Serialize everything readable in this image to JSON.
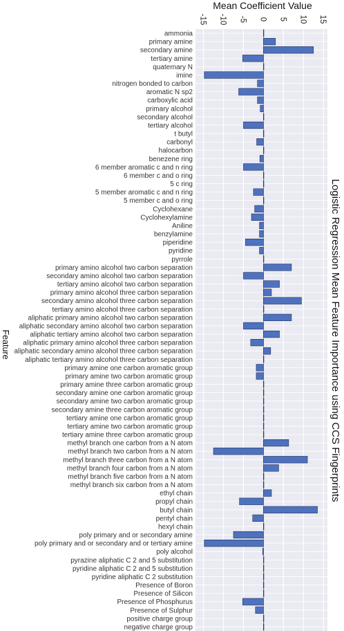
{
  "chart_data": {
    "type": "bar",
    "orientation": "horizontal",
    "title": "Logistic Regression Mean Feature Importance using CCS Fingerprints",
    "xlabel": "Mean Coefficient Value",
    "ylabel": "Feature",
    "xlim": [
      -17,
      16
    ],
    "xticks": [
      -15,
      -10,
      -5,
      0,
      5,
      10,
      15
    ],
    "xtick_labels": [
      "-15",
      "-10",
      "-5",
      "0",
      "5",
      "10",
      "15"
    ],
    "grid": true,
    "colors": {
      "bar": "#4f72be",
      "bar_edge": "#1f2f55",
      "plot_bg": "#eaeaf2",
      "grid": "#ffffff"
    },
    "categories": [
      "ammonia",
      "primary amine",
      "secondary amine",
      "tertiary amine",
      "quaternary N",
      "imine",
      "nitrogen bonded to carbon",
      "aromatic N sp2",
      "carboxylic acid",
      "primary alcohol",
      "secondary alcohol",
      "tertiary alcohol",
      "t butyl",
      "carbonyl",
      "halocarbon",
      "benezene ring",
      "6 member aromatic c and n ring",
      "6 member c and o ring",
      "5 c ring",
      "5 member aromatic c and n ring",
      "5 member c and o ring",
      "Cyclohexane",
      "Cyclohexylamine",
      "Aniline",
      "benzylamine",
      "piperidine",
      "pyridine",
      "pyrrole",
      "primary amino alcohol two carbon separation",
      "secondary amino alcohol two carbon separation",
      "tertiary amino alcohol two carbon separation",
      "primary amino alcohol three carbon separation",
      "secondary amino alcohol three carbon separation",
      "tertiary amino alcohol three carbon separation",
      "aliphatic primary amino alcohol two carbon separation",
      "aliphatic secondary amino alcohol two carbon separation",
      "aliphatic tertiary amino alcohol two carbon separation",
      "aliphatic primary amino alcohol three carbon separation",
      "aliphatic secondary amino alcohol three carbon separation",
      "aliphatic tertiary amino alcohol three carbon separation",
      "primary amine one carbon aromatic group",
      "primary amine two carbon aromatic group",
      "primary amine three carbon aromatic group",
      "secondary amine one carbon aromatic group",
      "secondary amine two carbon aromatic group",
      "secondary amine three carbon aromatic group",
      "tertiary amine one carbon aromatic group",
      "tertiary amine two carbon aromatic group",
      "tertiary amine three carbon aromatic group",
      "methyl branch one carbon from a N atom",
      "methyl branch two carbon from a N atom",
      "methyl branch three carbon from a N atom",
      "methyl branch four carbon from a N atom",
      "methyl branch five carbon from a N atom",
      "methyl branch six carbon from a N atom",
      "ethyl chain",
      "propyl chain",
      "butyl chain",
      "pentyl chain",
      "hexyl chain",
      "poly primary and or secondary amine",
      "poly primary and or secondary and or tertiary amine",
      "poly alcohol",
      "pyrazine aliphatic C 2 and 5 substitution",
      "pyridine aliphatic C 2 and 5 substitution",
      "pyridine aliphatic C 2 substitution",
      "Presence of Boron",
      "Presence of Silicon",
      "Presence of Phosphurus",
      "Presence of Sulphur",
      "positive charge group",
      "negative charge group"
    ],
    "values": [
      0,
      3.0,
      12.5,
      -5.2,
      0,
      -14.8,
      -1.5,
      -6.2,
      -1.5,
      -0.8,
      0,
      -5.0,
      0,
      -1.7,
      0,
      -0.9,
      -5.0,
      0,
      0,
      -2.5,
      0,
      -2.2,
      -3.0,
      -1.0,
      -1.0,
      -4.5,
      -1.0,
      0,
      7.0,
      -5.0,
      4.0,
      2.0,
      9.5,
      0,
      7.0,
      -5.0,
      4.0,
      -3.2,
      1.8,
      0,
      -1.8,
      -1.8,
      0,
      0,
      0,
      0,
      0,
      0,
      0,
      6.3,
      -12.5,
      11.0,
      3.8,
      0,
      0,
      2.0,
      -6.0,
      13.5,
      -2.7,
      0,
      -7.5,
      -14.8,
      -0.2,
      0,
      0,
      0,
      0,
      0,
      -5.2,
      -2.0,
      0,
      0
    ]
  }
}
